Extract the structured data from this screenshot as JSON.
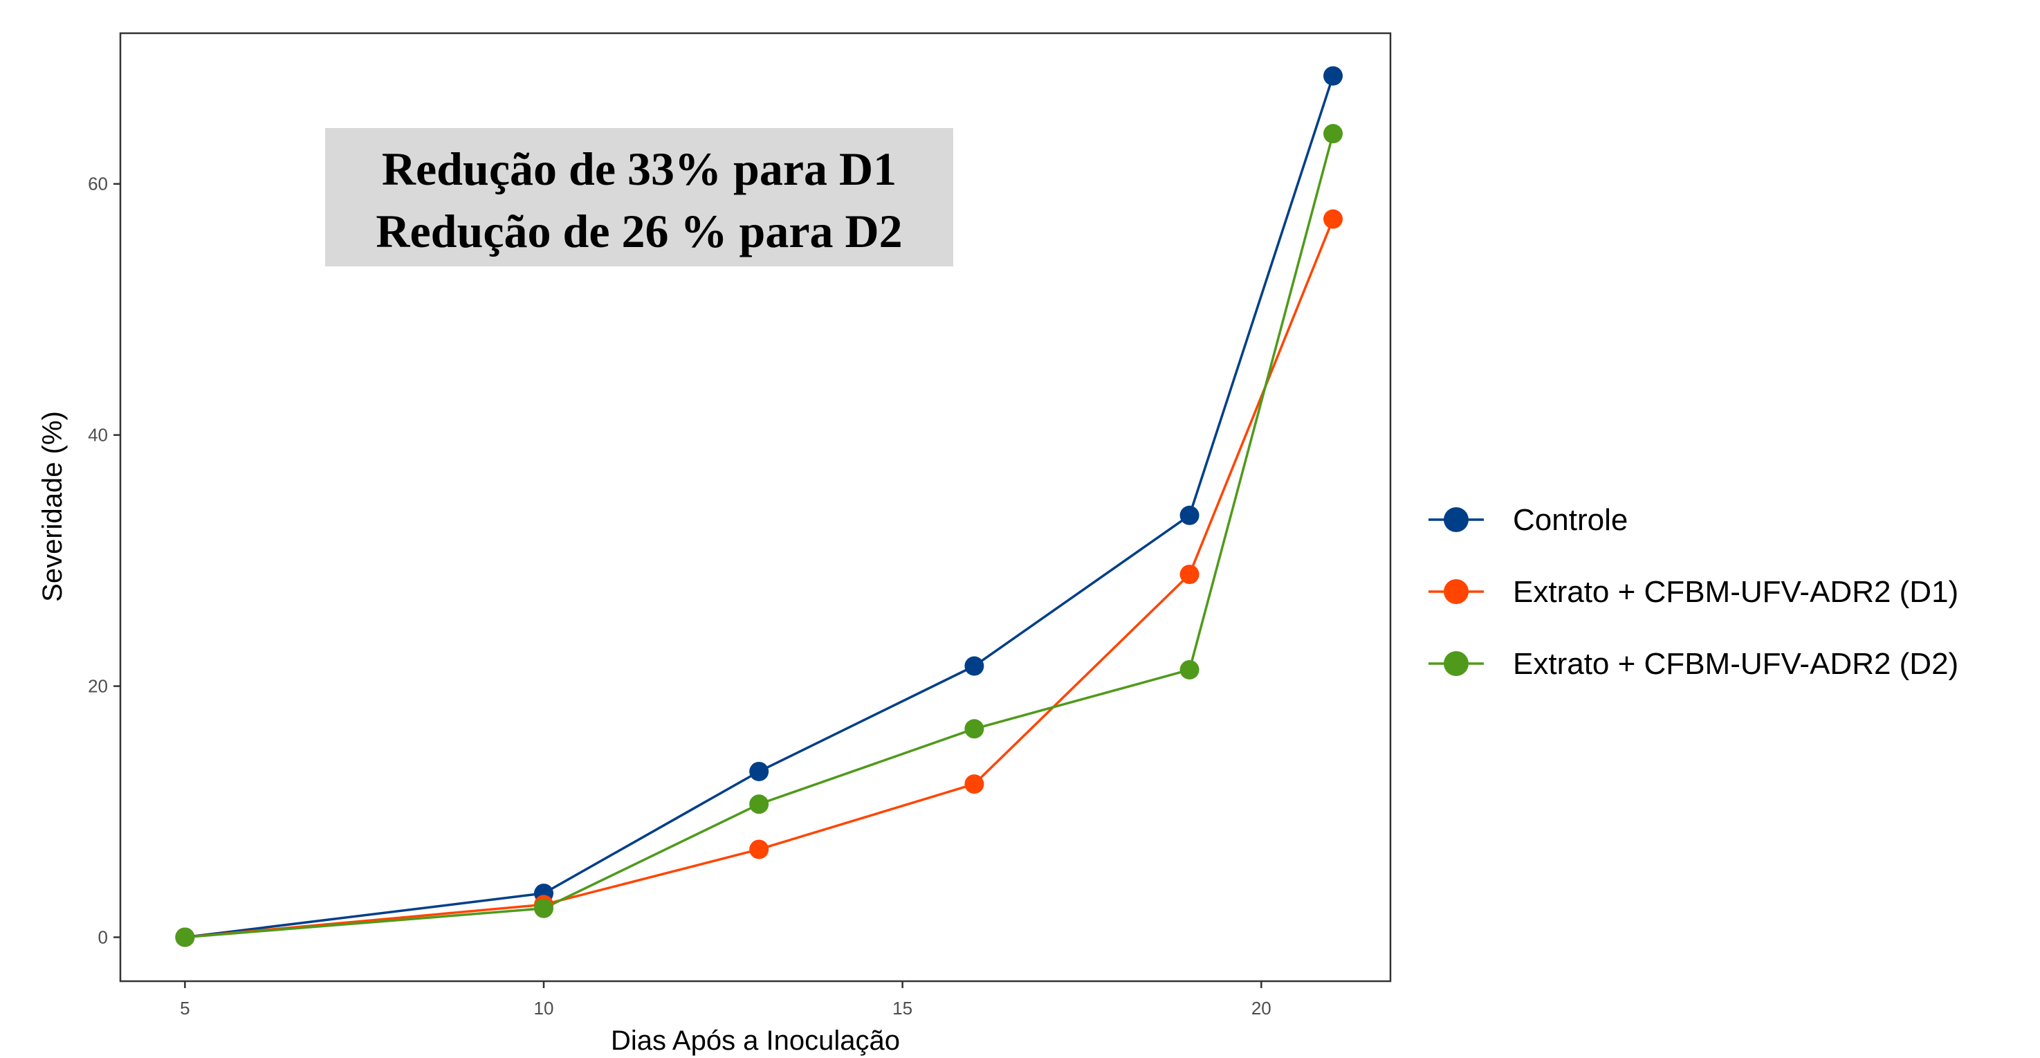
{
  "chart_data": {
    "type": "line",
    "xlabel": "Dias Após a Inoculação",
    "ylabel": "Severidade (%)",
    "xlim": [
      4.1,
      21.8
    ],
    "ylim": [
      -3.5,
      72
    ],
    "x_ticks": [
      5,
      10,
      15,
      20
    ],
    "y_ticks": [
      0,
      20,
      40,
      60
    ],
    "x": [
      5,
      10,
      13,
      16,
      19,
      21
    ],
    "grid": false,
    "legend_position": "right",
    "series": [
      {
        "name": "Controle",
        "color": "#003f88",
        "values": [
          0,
          3.5,
          13.2,
          21.6,
          33.6,
          68.6
        ]
      },
      {
        "name": "Extrato + CFBM-UFV-ADR2 (D1)",
        "color": "#ff4500",
        "values": [
          0,
          2.6,
          7.0,
          12.2,
          28.9,
          57.2
        ]
      },
      {
        "name": "Extrato + CFBM-UFV-ADR2 (D2)",
        "color": "#4f9a1b",
        "values": [
          0,
          2.3,
          10.6,
          16.6,
          21.3,
          64.0
        ]
      }
    ],
    "annotations": [
      "Redução de 33% para D1",
      "Redução de 26 % para D2"
    ]
  }
}
